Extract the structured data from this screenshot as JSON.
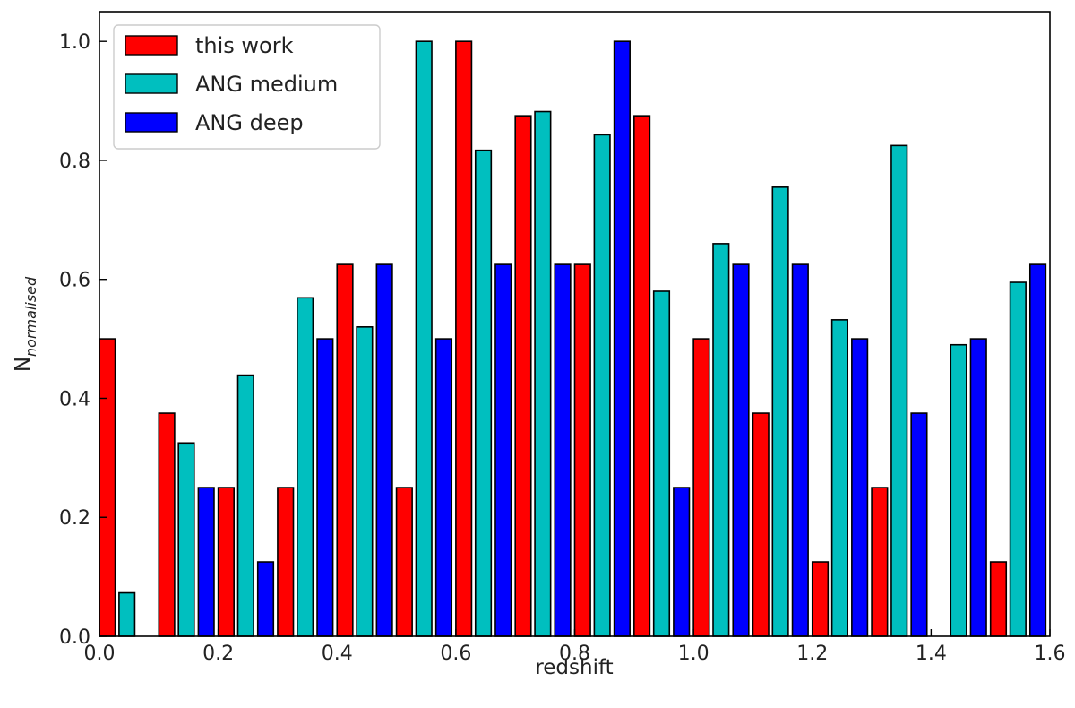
{
  "chart_data": {
    "type": "bar",
    "xlabel": "redshift",
    "ylabel": "N",
    "ylabel_sub": "normalised",
    "xlim": [
      0.0,
      1.6
    ],
    "ylim": [
      0.0,
      1.05
    ],
    "xticks": [
      "0.0",
      "0.2",
      "0.4",
      "0.6",
      "0.8",
      "1.0",
      "1.2",
      "1.4",
      "1.6"
    ],
    "yticks": [
      "0.0",
      "0.2",
      "0.4",
      "0.6",
      "0.8",
      "1.0"
    ],
    "grid": false,
    "legend_position": "top-left",
    "bin_starts": [
      0.0,
      0.1,
      0.2,
      0.3,
      0.4,
      0.5,
      0.6,
      0.7,
      0.8,
      0.9,
      1.0,
      1.1,
      1.2,
      1.3,
      1.4,
      1.5
    ],
    "series": [
      {
        "name": "this work",
        "color": "#ff0000",
        "values": [
          0.5,
          0.375,
          0.25,
          0.25,
          0.625,
          0.25,
          1.0,
          0.875,
          0.625,
          0.875,
          0.5,
          0.375,
          0.125,
          0.25,
          0.0,
          0.125
        ]
      },
      {
        "name": "ANG medium",
        "color": "#00bfbf",
        "values": [
          0.073,
          0.325,
          0.439,
          0.569,
          0.52,
          1.0,
          0.817,
          0.882,
          0.843,
          0.58,
          0.66,
          0.755,
          0.532,
          0.825,
          0.49,
          0.595
        ]
      },
      {
        "name": "ANG deep",
        "color": "#0000ff",
        "values": [
          0.0,
          0.25,
          0.125,
          0.5,
          0.625,
          0.5,
          0.625,
          0.625,
          1.0,
          0.25,
          0.625,
          0.625,
          0.5,
          0.375,
          0.5,
          0.625
        ]
      }
    ]
  }
}
